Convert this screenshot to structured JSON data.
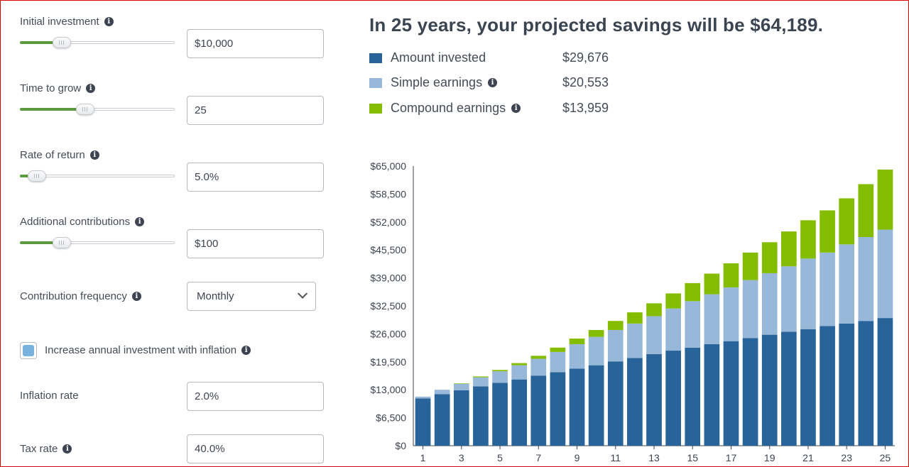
{
  "inputs": {
    "initial_investment": {
      "label": "Initial investment",
      "value": "$10,000",
      "slider_fraction": 0.27
    },
    "time_to_grow": {
      "label": "Time to grow",
      "value": "25",
      "slider_fraction": 0.42
    },
    "rate_of_return": {
      "label": "Rate of return",
      "value": "5.0%",
      "slider_fraction": 0.11
    },
    "additional_contributions": {
      "label": "Additional contributions",
      "value": "$100",
      "slider_fraction": 0.27
    },
    "contribution_frequency": {
      "label": "Contribution frequency",
      "value": "Monthly"
    },
    "inflation_checkbox": {
      "label": "Increase annual investment with inflation",
      "checked": true
    },
    "inflation_rate": {
      "label": "Inflation rate",
      "value": "2.0%"
    },
    "tax_rate": {
      "label": "Tax rate",
      "value": "40.0%"
    }
  },
  "summary": {
    "headline": "In 25 years, your projected savings will be $64,189.",
    "legend": [
      {
        "name": "Amount invested",
        "amount": "$29,676",
        "color": "#28649a",
        "info": false
      },
      {
        "name": "Simple earnings",
        "amount": "$20,553",
        "color": "#97b8d8",
        "info": true
      },
      {
        "name": "Compound earnings",
        "amount": "$13,959",
        "color": "#84bd00",
        "info": true
      }
    ]
  },
  "colors": {
    "accent_green": "#5b9a3e",
    "invested": "#28649a",
    "simple": "#97b8d8",
    "compound": "#84bd00"
  },
  "chart_data": {
    "type": "bar",
    "stacked": true,
    "categories": [
      1,
      2,
      3,
      4,
      5,
      6,
      7,
      8,
      9,
      10,
      11,
      12,
      13,
      14,
      15,
      16,
      17,
      18,
      19,
      20,
      21,
      22,
      23,
      24,
      25
    ],
    "x_tick_labels": [
      "1",
      "3",
      "5",
      "7",
      "9",
      "11",
      "13",
      "15",
      "17",
      "19",
      "21",
      "23",
      "25"
    ],
    "y_tick_labels": [
      "$0",
      "$6,500",
      "$13,000",
      "$19,500",
      "$26,000",
      "$32,500",
      "$39,000",
      "$45,500",
      "$52,000",
      "$58,500",
      "$65,000"
    ],
    "ylim": [
      0,
      65000
    ],
    "series": [
      {
        "name": "Amount invested",
        "values": [
          11000,
          12000,
          12900,
          13800,
          14600,
          15400,
          16300,
          17100,
          17900,
          18700,
          19600,
          20400,
          21300,
          22100,
          22800,
          23600,
          24300,
          25000,
          25800,
          26500,
          27100,
          27800,
          28400,
          29000,
          29676
        ]
      },
      {
        "name": "Simple earnings",
        "values": [
          400,
          1000,
          1500,
          2100,
          2700,
          3300,
          3900,
          4700,
          5700,
          6600,
          7300,
          8000,
          8800,
          9800,
          10800,
          11600,
          12500,
          13500,
          14300,
          15200,
          16400,
          17100,
          18400,
          19500,
          20553
        ]
      },
      {
        "name": "Compound earnings",
        "values": [
          0,
          0,
          100,
          200,
          300,
          500,
          700,
          1000,
          1300,
          1600,
          2100,
          2600,
          3000,
          3500,
          4200,
          4800,
          5600,
          6400,
          7200,
          8100,
          8900,
          9800,
          10700,
          12300,
          13959
        ]
      }
    ]
  }
}
